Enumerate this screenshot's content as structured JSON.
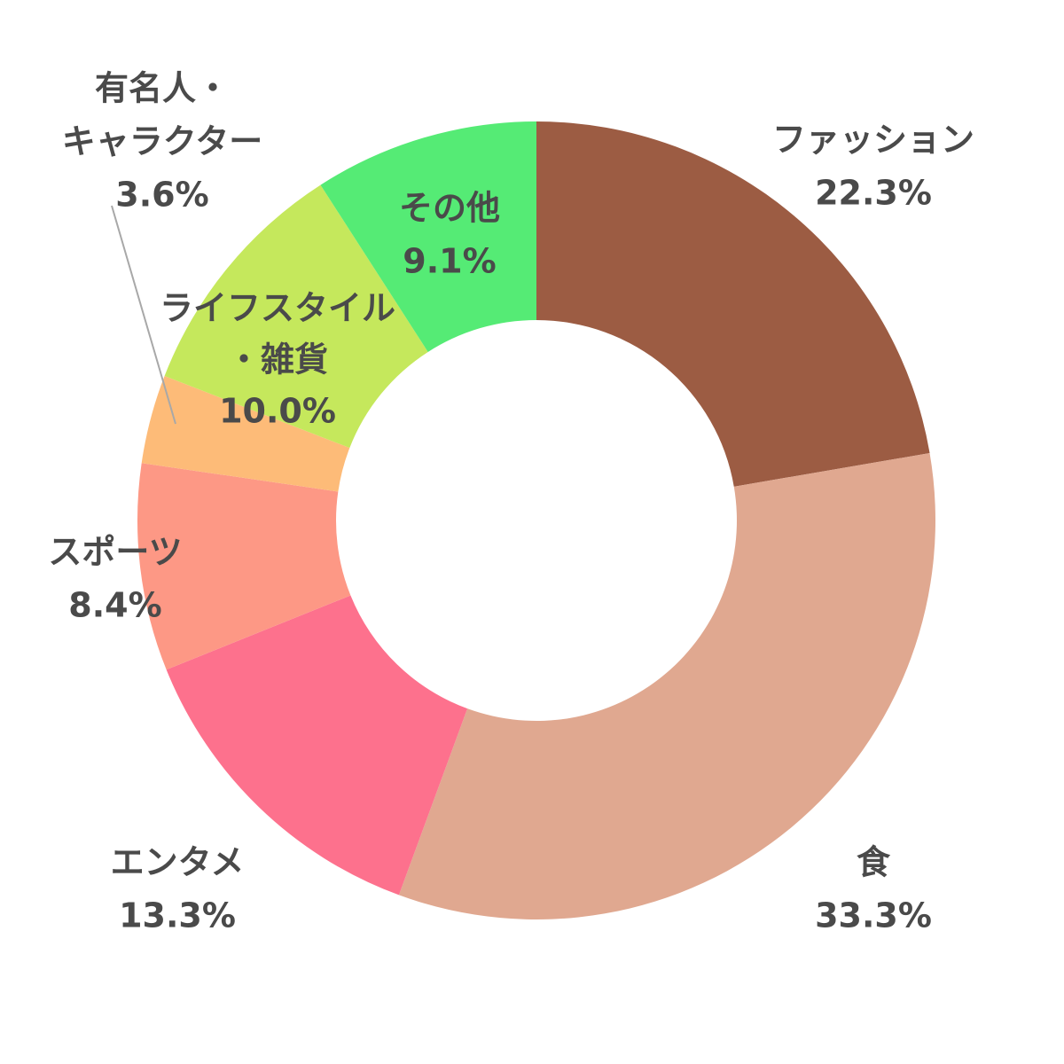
{
  "chart_data": {
    "type": "pie",
    "variant": "donut",
    "title": "",
    "start": "12 o'clock, clockwise",
    "slices": [
      {
        "label": [
          "ファッション"
        ],
        "value": 22.3,
        "value_label": "22.3%",
        "color": "#9c5c43"
      },
      {
        "label": [
          "食"
        ],
        "value": 33.3,
        "value_label": "33.3%",
        "color": "#e0a890"
      },
      {
        "label": [
          "エンタメ"
        ],
        "value": 13.3,
        "value_label": "13.3%",
        "color": "#fd718d"
      },
      {
        "label": [
          "スポーツ"
        ],
        "value": 8.4,
        "value_label": "8.4%",
        "color": "#fd9885"
      },
      {
        "label": [
          "有名人・",
          "キャラクター"
        ],
        "value": 3.6,
        "value_label": "3.6%",
        "color": "#fdbb78"
      },
      {
        "label": [
          "ライフスタイル",
          "・雑貨"
        ],
        "value": 10.0,
        "value_label": "10.0%",
        "color": "#c5e85c"
      },
      {
        "label": [
          "その他"
        ],
        "value": 9.1,
        "value_label": "9.1%",
        "color": "#55eb75"
      }
    ],
    "legend": "none",
    "background": "#ffffff"
  }
}
